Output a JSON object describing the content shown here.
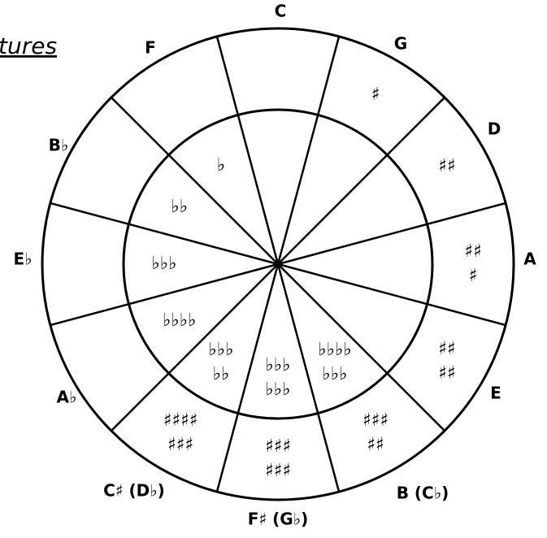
{
  "title": "tures",
  "segments": [
    {
      "label": "C",
      "outer": [],
      "inner": []
    },
    {
      "label": "G",
      "outer": [
        "♯"
      ],
      "inner": []
    },
    {
      "label": "D",
      "outer": [
        "♯♯"
      ],
      "inner": []
    },
    {
      "label": "A",
      "outer": [
        "♯♯",
        "♯"
      ],
      "inner": []
    },
    {
      "label": "E",
      "outer": [
        "♯♯",
        "♯♯"
      ],
      "inner": []
    },
    {
      "label": "B (C♭)",
      "outer": [
        "♯♯♯",
        "♯♯"
      ],
      "inner": [
        "♭♭♭♭",
        "♭♭♭"
      ]
    },
    {
      "label": "F♯ (G♭)",
      "outer": [
        "♯♯♯",
        "♯♯♯"
      ],
      "inner": [
        "♭♭♭",
        "♭♭♭"
      ]
    },
    {
      "label": "C♯ (D♭)",
      "outer": [
        "♯♯♯♯",
        "♯♯♯"
      ],
      "inner": [
        "♭♭♭",
        "♭♭"
      ]
    },
    {
      "label": "A♭",
      "outer": [],
      "inner": [
        "♭♭♭♭"
      ]
    },
    {
      "label": "E♭",
      "outer": [],
      "inner": [
        "♭♭♭"
      ]
    },
    {
      "label": "B♭",
      "outer": [],
      "inner": [
        "♭♭"
      ]
    },
    {
      "label": "F",
      "outer": [],
      "inner": [
        "♭"
      ]
    }
  ]
}
